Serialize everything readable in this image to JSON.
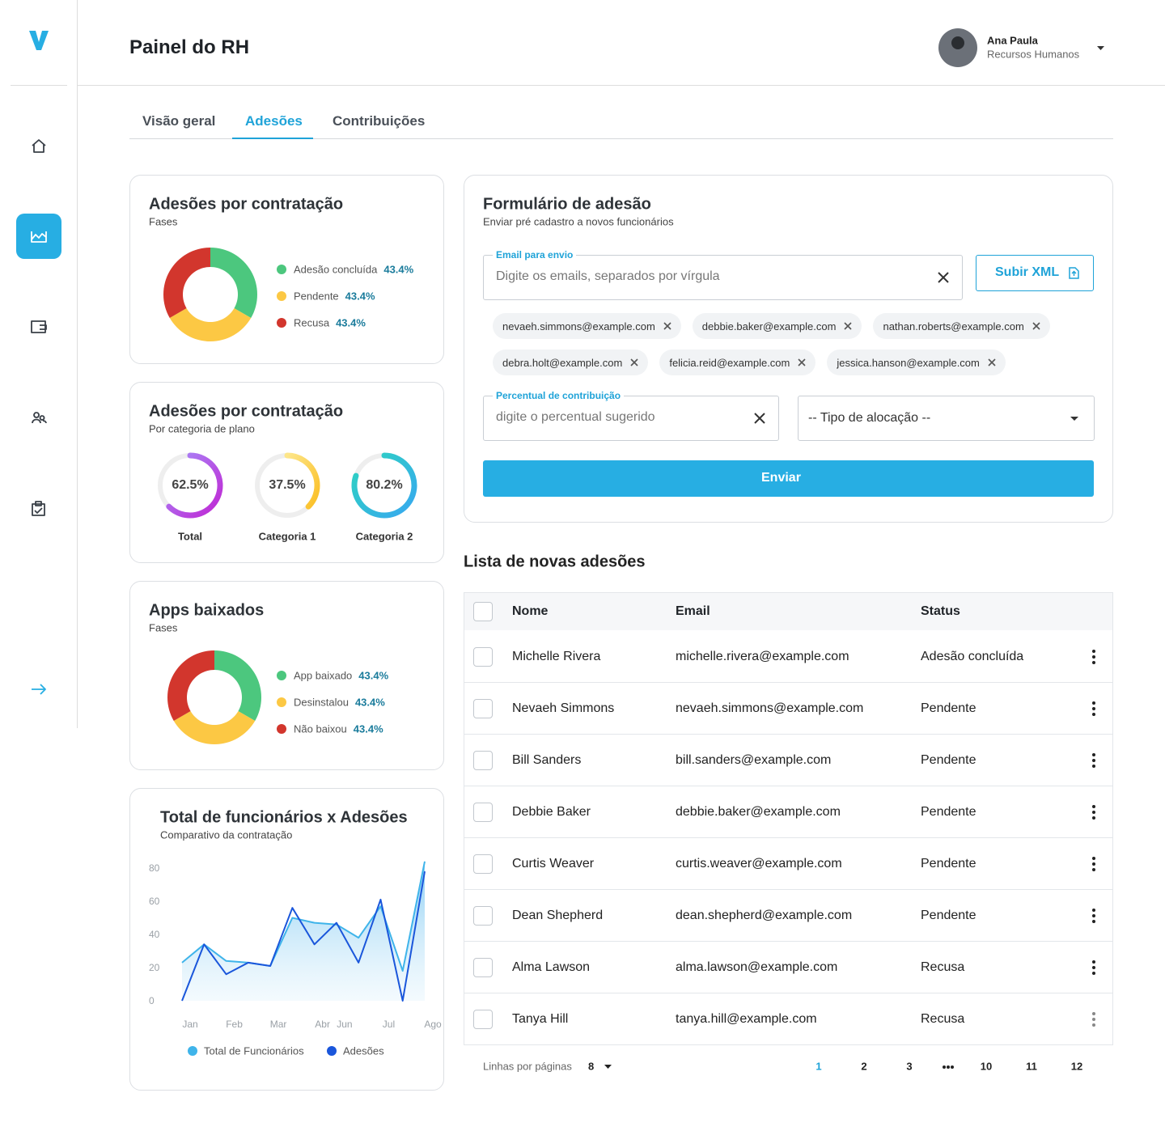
{
  "header": {
    "title": "Painel do RH",
    "user_name": "Ana Paula",
    "user_role": "Recursos Humanos"
  },
  "tabs": {
    "items": [
      "Visão geral",
      "Adesões",
      "Contribuições"
    ],
    "active": 1
  },
  "hiring_card": {
    "type": "donut",
    "title": "Adesões por contratação",
    "subtitle": "Fases",
    "categories": [
      "Adesão concluída",
      "Pendente",
      "Recusa"
    ],
    "values": [
      43.4,
      43.4,
      43.4
    ],
    "value_labels": [
      "43.4%",
      "43.4%",
      "43.4%"
    ],
    "colors": [
      "#4cc77e",
      "#fcc844",
      "#d2362d"
    ]
  },
  "plan_card": {
    "type": "gauge",
    "title": "Adesões por contratação",
    "subtitle": "Por categoria de plano",
    "categories": [
      "Total",
      "Categoria 1",
      "Categoria 2"
    ],
    "values": [
      62.5,
      37.5,
      80.2
    ],
    "value_labels": [
      "62.5%",
      "37.5%",
      "80.2%"
    ],
    "colors": [
      [
        "#a78bfa",
        "#c026d3"
      ],
      [
        "#fde68a",
        "#fbbf24"
      ],
      [
        "#2dd4bf",
        "#38a8f0"
      ]
    ]
  },
  "apps_card": {
    "type": "donut",
    "title": "Apps baixados",
    "subtitle": "Fases",
    "categories": [
      "App baixado",
      "Desinstalou",
      "Não baixou"
    ],
    "values": [
      43.4,
      43.4,
      43.4
    ],
    "value_labels": [
      "43.4%",
      "43.4%",
      "43.4%"
    ],
    "colors": [
      "#4cc77e",
      "#fcc844",
      "#d2362d"
    ]
  },
  "line_chart": {
    "type": "line",
    "title": "Total de funcionários x Adesões",
    "subtitle": "Comparativo da contratação",
    "categories": [
      "Jan",
      null,
      "Feb",
      null,
      "Mar",
      null,
      "Abr",
      "Jun",
      null,
      "Jul",
      null,
      "Ago"
    ],
    "ylim": [
      0,
      85
    ],
    "yticks": [
      0,
      20,
      40,
      60,
      80
    ],
    "series": [
      {
        "name": "Total de Funcionários",
        "color": "#3fb4ea",
        "values": [
          23,
          34,
          24,
          23,
          21,
          50,
          47,
          46,
          38,
          57,
          18,
          84
        ]
      },
      {
        "name": "Adesões",
        "color": "#1a56db",
        "values": [
          0,
          34,
          16,
          23,
          21,
          56,
          34,
          47,
          23,
          61,
          0,
          78
        ]
      }
    ]
  },
  "form": {
    "title": "Formulário de adesão",
    "subtitle": "Enviar pré cadastro a novos funcionários",
    "email_label": "Email para envio",
    "email_placeholder": "Digite os emails, separados por vírgula",
    "upload_button": "Subir XML",
    "emails": [
      "nevaeh.simmons@example.com",
      "debbie.baker@example.com",
      "nathan.roberts@example.com",
      "debra.holt@example.com",
      "felicia.reid@example.com",
      "jessica.hanson@example.com"
    ],
    "percent_label": "Percentual de contribuição",
    "percent_placeholder": "digite o percentual sugerido",
    "select_placeholder": "-- Tipo de alocação --",
    "submit": "Enviar"
  },
  "table": {
    "title": "Lista de novas adesões",
    "columns": [
      "Nome",
      "Email",
      "Status"
    ],
    "rows": [
      [
        "Michelle Rivera",
        "michelle.rivera@example.com",
        "Adesão concluída"
      ],
      [
        "Nevaeh Simmons",
        "nevaeh.simmons@example.com",
        "Pendente"
      ],
      [
        "Bill Sanders",
        "bill.sanders@example.com",
        "Pendente"
      ],
      [
        "Debbie Baker",
        "debbie.baker@example.com",
        "Pendente"
      ],
      [
        "Curtis Weaver",
        "curtis.weaver@example.com",
        "Pendente"
      ],
      [
        "Dean Shepherd",
        "dean.shepherd@example.com",
        "Pendente"
      ],
      [
        "Alma Lawson",
        "alma.lawson@example.com",
        "Recusa"
      ],
      [
        "Tanya Hill",
        "tanya.hill@example.com",
        "Recusa"
      ]
    ]
  },
  "pagination": {
    "rows_label": "Linhas por páginas",
    "rows_value": 8,
    "pages": [
      1,
      2,
      3,
      10,
      11,
      12
    ],
    "current": 0
  }
}
